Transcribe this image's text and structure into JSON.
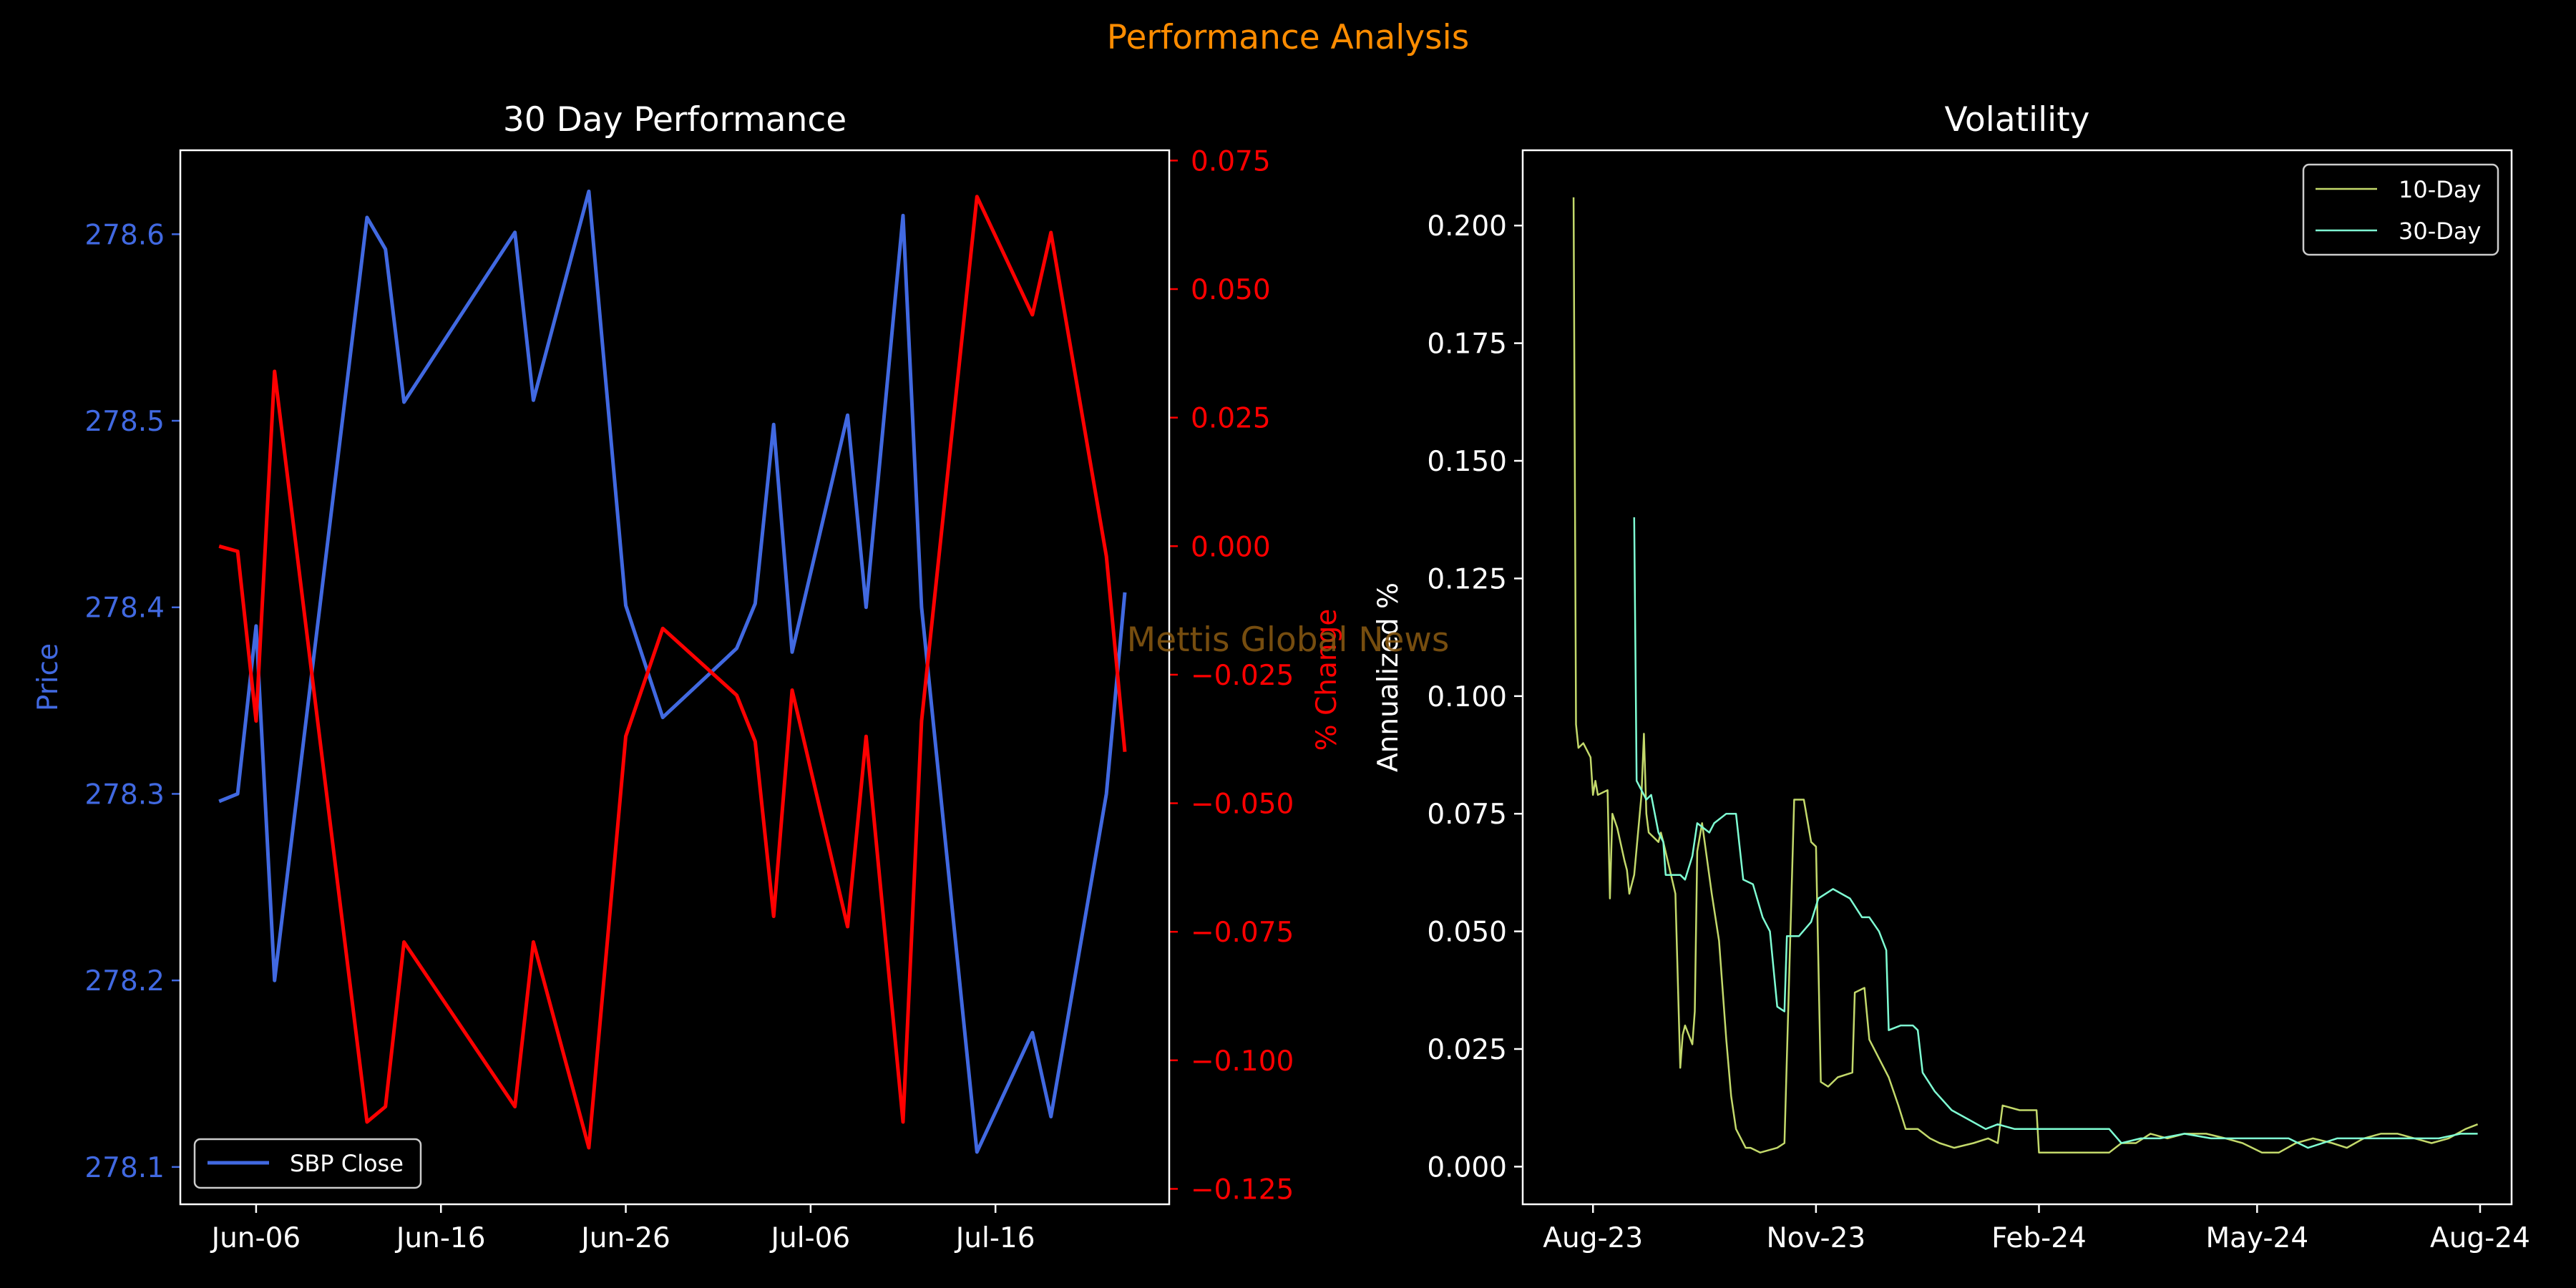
{
  "figure": {
    "suptitle": "Performance Analysis",
    "watermark": "Mettis Global News",
    "colors": {
      "background": "#000000",
      "suptitle": "#ff8c00",
      "price": "#4169e1",
      "pct": "#ff0000",
      "axis": "#ffffff",
      "vol10": "#c3d96b",
      "vol30": "#7fffd4",
      "watermark": "#8b5a12"
    }
  },
  "chart_data": [
    {
      "type": "line",
      "title": "30 Day Performance",
      "xlabel": "",
      "ylabel": "Price",
      "y2label": "% Change",
      "x_tick_labels": [
        "Jun-06",
        "Jun-16",
        "Jun-26",
        "Jul-06",
        "Jul-16"
      ],
      "y_ticks": [
        "278.1",
        "278.2",
        "278.3",
        "278.4",
        "278.5",
        "278.6"
      ],
      "y2_ticks": [
        "0.075",
        "0.050",
        "0.025",
        "0.000",
        "−0.025",
        "−0.050",
        "−0.075",
        "−0.100",
        "−0.125"
      ],
      "ylim": [
        278.08,
        278.645
      ],
      "y2lim": [
        -0.128,
        0.077
      ],
      "legend": {
        "position": "lower-left",
        "entries": [
          "SBP Close"
        ]
      },
      "series": [
        {
          "name": "SBP Close",
          "axis": "left",
          "points": [
            [
              "2024-06-04",
              278.296
            ],
            [
              "2024-06-05",
              278.3
            ],
            [
              "2024-06-06",
              278.39
            ],
            [
              "2024-06-07",
              278.2
            ],
            [
              "2024-06-12",
              278.609
            ],
            [
              "2024-06-13",
              278.592
            ],
            [
              "2024-06-14",
              278.51
            ],
            [
              "2024-06-20",
              278.601
            ],
            [
              "2024-06-21",
              278.511
            ],
            [
              "2024-06-24",
              278.623
            ],
            [
              "2024-06-26",
              278.401
            ],
            [
              "2024-06-28",
              278.341
            ],
            [
              "2024-07-02",
              278.378
            ],
            [
              "2024-07-03",
              278.402
            ],
            [
              "2024-07-04",
              278.498
            ],
            [
              "2024-07-05",
              278.376
            ],
            [
              "2024-07-08",
              278.503
            ],
            [
              "2024-07-09",
              278.4
            ],
            [
              "2024-07-11",
              278.61
            ],
            [
              "2024-07-12",
              278.4
            ],
            [
              "2024-07-15",
              278.108
            ],
            [
              "2024-07-18",
              278.172
            ],
            [
              "2024-07-19",
              278.127
            ],
            [
              "2024-07-22",
              278.3
            ],
            [
              "2024-07-23",
              278.408
            ]
          ]
        },
        {
          "name": "",
          "axis": "right",
          "points": [
            [
              "2024-06-04",
              0.0
            ],
            [
              "2024-06-05",
              -0.001
            ],
            [
              "2024-06-06",
              -0.034
            ],
            [
              "2024-06-07",
              0.034
            ],
            [
              "2024-06-12",
              -0.112
            ],
            [
              "2024-06-13",
              -0.109
            ],
            [
              "2024-06-14",
              -0.077
            ],
            [
              "2024-06-20",
              -0.109
            ],
            [
              "2024-06-21",
              -0.077
            ],
            [
              "2024-06-24",
              -0.117
            ],
            [
              "2024-06-26",
              -0.037
            ],
            [
              "2024-06-28",
              -0.016
            ],
            [
              "2024-07-02",
              -0.029
            ],
            [
              "2024-07-03",
              -0.038
            ],
            [
              "2024-07-04",
              -0.072
            ],
            [
              "2024-07-05",
              -0.028
            ],
            [
              "2024-07-08",
              -0.074
            ],
            [
              "2024-07-09",
              -0.037
            ],
            [
              "2024-07-11",
              -0.112
            ],
            [
              "2024-07-12",
              -0.034
            ],
            [
              "2024-07-15",
              0.068
            ],
            [
              "2024-07-18",
              0.045
            ],
            [
              "2024-07-19",
              0.061
            ],
            [
              "2024-07-22",
              -0.002
            ],
            [
              "2024-07-23",
              -0.04
            ]
          ]
        }
      ]
    },
    {
      "type": "line",
      "title": "Volatility",
      "xlabel": "",
      "ylabel": "Annualized %",
      "x_tick_labels": [
        "Aug-23",
        "Nov-23",
        "Feb-24",
        "May-24",
        "Aug-24"
      ],
      "y_ticks": [
        "0.000",
        "0.025",
        "0.050",
        "0.075",
        "0.100",
        "0.125",
        "0.150",
        "0.175",
        "0.200"
      ],
      "ylim": [
        -0.008,
        0.216
      ],
      "legend": {
        "position": "top-right",
        "entries": [
          "10-Day",
          "30-Day"
        ]
      },
      "series": [
        {
          "name": "10-Day",
          "points": [
            [
              "2023-07-24",
              0.206
            ],
            [
              "2023-07-25",
              0.094
            ],
            [
              "2023-07-26",
              0.089
            ],
            [
              "2023-07-28",
              0.09
            ],
            [
              "2023-07-31",
              0.087
            ],
            [
              "2023-08-01",
              0.079
            ],
            [
              "2023-08-02",
              0.082
            ],
            [
              "2023-08-03",
              0.079
            ],
            [
              "2023-08-07",
              0.08
            ],
            [
              "2023-08-08",
              0.057
            ],
            [
              "2023-08-09",
              0.075
            ],
            [
              "2023-08-11",
              0.072
            ],
            [
              "2023-08-14",
              0.065
            ],
            [
              "2023-08-15",
              0.063
            ],
            [
              "2023-08-16",
              0.058
            ],
            [
              "2023-08-18",
              0.062
            ],
            [
              "2023-08-21",
              0.079
            ],
            [
              "2023-08-22",
              0.092
            ],
            [
              "2023-08-23",
              0.075
            ],
            [
              "2023-08-24",
              0.071
            ],
            [
              "2023-08-28",
              0.069
            ],
            [
              "2023-08-29",
              0.071
            ],
            [
              "2023-08-30",
              0.069
            ],
            [
              "2023-09-04",
              0.058
            ],
            [
              "2023-09-06",
              0.021
            ],
            [
              "2023-09-07",
              0.028
            ],
            [
              "2023-09-08",
              0.03
            ],
            [
              "2023-09-11",
              0.026
            ],
            [
              "2023-09-12",
              0.033
            ],
            [
              "2023-09-13",
              0.067
            ],
            [
              "2023-09-15",
              0.073
            ],
            [
              "2023-09-19",
              0.058
            ],
            [
              "2023-09-22",
              0.048
            ],
            [
              "2023-09-25",
              0.027
            ],
            [
              "2023-09-27",
              0.015
            ],
            [
              "2023-09-29",
              0.008
            ],
            [
              "2023-10-03",
              0.004
            ],
            [
              "2023-10-05",
              0.004
            ],
            [
              "2023-10-09",
              0.003
            ],
            [
              "2023-10-16",
              0.004
            ],
            [
              "2023-10-19",
              0.005
            ],
            [
              "2023-10-23",
              0.078
            ],
            [
              "2023-10-27",
              0.078
            ],
            [
              "2023-10-30",
              0.069
            ],
            [
              "2023-11-01",
              0.068
            ],
            [
              "2023-11-03",
              0.018
            ],
            [
              "2023-11-06",
              0.017
            ],
            [
              "2023-11-10",
              0.019
            ],
            [
              "2023-11-16",
              0.02
            ],
            [
              "2023-11-17",
              0.037
            ],
            [
              "2023-11-21",
              0.038
            ],
            [
              "2023-11-23",
              0.027
            ],
            [
              "2023-11-28",
              0.022
            ],
            [
              "2023-12-01",
              0.019
            ],
            [
              "2023-12-05",
              0.013
            ],
            [
              "2023-12-08",
              0.008
            ],
            [
              "2023-12-13",
              0.008
            ],
            [
              "2023-12-18",
              0.006
            ],
            [
              "2023-12-22",
              0.005
            ],
            [
              "2023-12-28",
              0.004
            ],
            [
              "2024-01-05",
              0.005
            ],
            [
              "2024-01-11",
              0.006
            ],
            [
              "2024-01-15",
              0.005
            ],
            [
              "2024-01-17",
              0.013
            ],
            [
              "2024-01-24",
              0.012
            ],
            [
              "2024-01-31",
              0.012
            ],
            [
              "2024-02-01",
              0.003
            ],
            [
              "2024-02-10",
              0.003
            ],
            [
              "2024-02-20",
              0.003
            ],
            [
              "2024-03-01",
              0.003
            ],
            [
              "2024-03-06",
              0.005
            ],
            [
              "2024-03-12",
              0.005
            ],
            [
              "2024-03-18",
              0.007
            ],
            [
              "2024-03-25",
              0.006
            ],
            [
              "2024-04-01",
              0.007
            ],
            [
              "2024-04-10",
              0.007
            ],
            [
              "2024-04-18",
              0.006
            ],
            [
              "2024-04-25",
              0.005
            ],
            [
              "2024-05-03",
              0.003
            ],
            [
              "2024-05-10",
              0.003
            ],
            [
              "2024-05-17",
              0.005
            ],
            [
              "2024-05-24",
              0.006
            ],
            [
              "2024-06-01",
              0.005
            ],
            [
              "2024-06-07",
              0.004
            ],
            [
              "2024-06-14",
              0.006
            ],
            [
              "2024-06-21",
              0.007
            ],
            [
              "2024-06-28",
              0.007
            ],
            [
              "2024-07-05",
              0.006
            ],
            [
              "2024-07-12",
              0.005
            ],
            [
              "2024-07-19",
              0.006
            ],
            [
              "2024-07-26",
              0.008
            ],
            [
              "2024-07-31",
              0.009
            ]
          ]
        },
        {
          "name": "30-Day",
          "points": [
            [
              "2023-08-18",
              0.138
            ],
            [
              "2023-08-19",
              0.082
            ],
            [
              "2023-08-21",
              0.08
            ],
            [
              "2023-08-23",
              0.078
            ],
            [
              "2023-08-25",
              0.079
            ],
            [
              "2023-08-28",
              0.071
            ],
            [
              "2023-08-30",
              0.069
            ],
            [
              "2023-08-31",
              0.062
            ],
            [
              "2023-09-06",
              0.062
            ],
            [
              "2023-09-08",
              0.061
            ],
            [
              "2023-09-11",
              0.066
            ],
            [
              "2023-09-13",
              0.073
            ],
            [
              "2023-09-18",
              0.071
            ],
            [
              "2023-09-20",
              0.073
            ],
            [
              "2023-09-25",
              0.075
            ],
            [
              "2023-09-29",
              0.075
            ],
            [
              "2023-10-02",
              0.061
            ],
            [
              "2023-10-06",
              0.06
            ],
            [
              "2023-10-10",
              0.053
            ],
            [
              "2023-10-13",
              0.05
            ],
            [
              "2023-10-16",
              0.034
            ],
            [
              "2023-10-19",
              0.033
            ],
            [
              "2023-10-20",
              0.049
            ],
            [
              "2023-10-25",
              0.049
            ],
            [
              "2023-10-30",
              0.052
            ],
            [
              "2023-11-02",
              0.057
            ],
            [
              "2023-11-08",
              0.059
            ],
            [
              "2023-11-15",
              0.057
            ],
            [
              "2023-11-20",
              0.053
            ],
            [
              "2023-11-23",
              0.053
            ],
            [
              "2023-11-27",
              0.05
            ],
            [
              "2023-11-30",
              0.046
            ],
            [
              "2023-12-01",
              0.029
            ],
            [
              "2023-12-06",
              0.03
            ],
            [
              "2023-12-11",
              0.03
            ],
            [
              "2023-12-13",
              0.029
            ],
            [
              "2023-12-15",
              0.02
            ],
            [
              "2023-12-20",
              0.016
            ],
            [
              "2023-12-27",
              0.012
            ],
            [
              "2024-01-03",
              0.01
            ],
            [
              "2024-01-10",
              0.008
            ],
            [
              "2024-01-15",
              0.009
            ],
            [
              "2024-01-22",
              0.008
            ],
            [
              "2024-02-01",
              0.008
            ],
            [
              "2024-02-15",
              0.008
            ],
            [
              "2024-03-01",
              0.008
            ],
            [
              "2024-03-06",
              0.005
            ],
            [
              "2024-03-14",
              0.006
            ],
            [
              "2024-03-22",
              0.006
            ],
            [
              "2024-04-01",
              0.007
            ],
            [
              "2024-04-12",
              0.006
            ],
            [
              "2024-04-24",
              0.006
            ],
            [
              "2024-05-06",
              0.006
            ],
            [
              "2024-05-14",
              0.006
            ],
            [
              "2024-05-22",
              0.004
            ],
            [
              "2024-06-03",
              0.006
            ],
            [
              "2024-06-14",
              0.006
            ],
            [
              "2024-06-25",
              0.006
            ],
            [
              "2024-07-05",
              0.006
            ],
            [
              "2024-07-15",
              0.006
            ],
            [
              "2024-07-24",
              0.007
            ],
            [
              "2024-07-31",
              0.007
            ]
          ]
        }
      ]
    }
  ]
}
